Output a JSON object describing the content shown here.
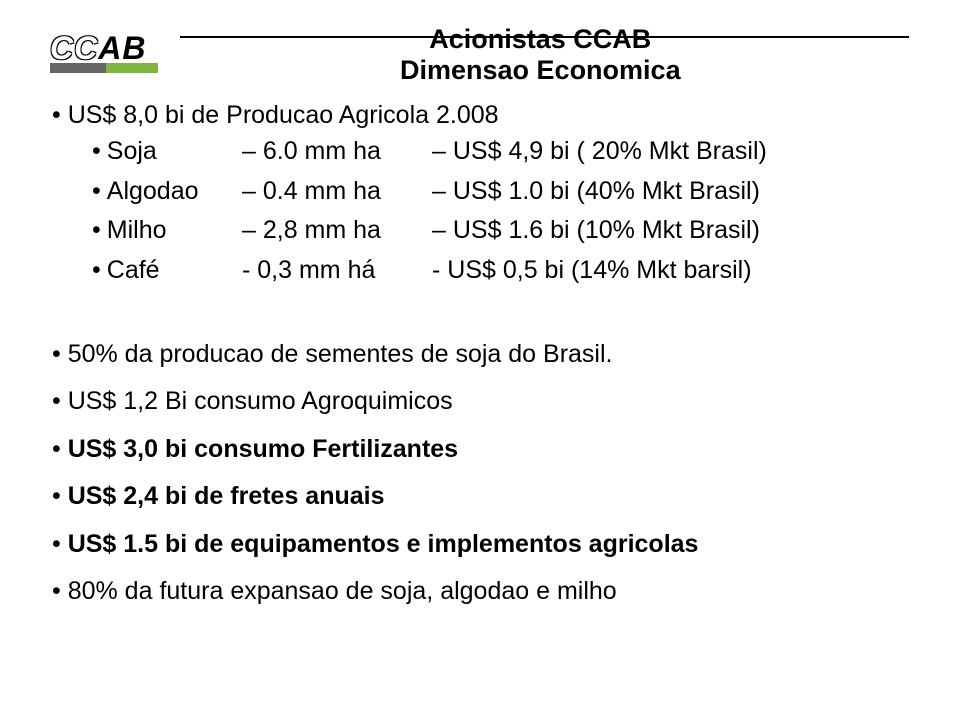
{
  "logo": {
    "cc": "CC",
    "ab": "AB"
  },
  "title": {
    "line1": "Acionistas CCAB",
    "line2": "Dimensao Economica"
  },
  "top": {
    "headline": "US$ 8,0 bi de Producao Agricola 2.008",
    "rows": [
      {
        "label": "Soja",
        "mid": "6.0 mm ha",
        "val": "US$ 4,9 bi ( 20% Mkt Brasil)"
      },
      {
        "label": "Algodao",
        "mid": "0.4 mm ha",
        "val": "US$ 1.0 bi (40% Mkt Brasil)"
      },
      {
        "label": "Milho",
        "mid": "2,8 mm ha",
        "val": "US$ 1.6 bi (10% Mkt Brasil)"
      },
      {
        "label": "Café",
        "mid": "0,3 mm há",
        "val": "US$ 0,5 bi (14% Mkt barsil)"
      }
    ]
  },
  "bullets": [
    {
      "text": "50% da producao de sementes de soja do Brasil.",
      "bold": false
    },
    {
      "text": "US$ 1,2 Bi  consumo Agroquimicos",
      "bold": false
    },
    {
      "text": "US$ 3,0 bi consumo Fertilizantes",
      "bold": true
    },
    {
      "text": "US$ 2,4 bi de fretes anuais",
      "bold": true
    },
    {
      "text": "US$ 1.5 bi de equipamentos e implementos agricolas",
      "bold": true
    },
    {
      "text": "80% da futura expansao de soja, algodao e milho",
      "bold": false
    }
  ]
}
